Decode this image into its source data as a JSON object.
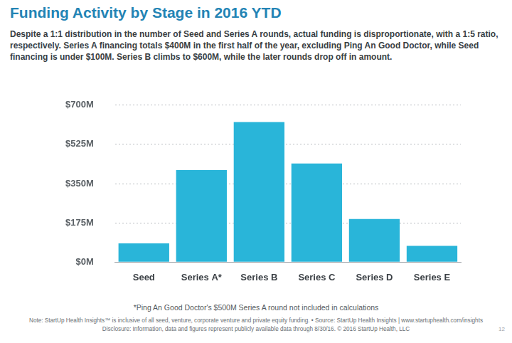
{
  "chart_data": {
    "type": "bar",
    "title": "Funding Activity by Stage in 2016 YTD",
    "subtitle": "Despite a 1:1 distribution in the number of Seed and Series A rounds, actual funding is disproportionate, with a 1:5 ratio, respectively. Series A financing totals $400M in the first half of the year, excluding Ping An Good Doctor, while Seed financing is under $100M. Series B climbs to $600M, while the later rounds drop off in amount.",
    "categories": [
      "Seed",
      "Series A*",
      "Series B",
      "Series C",
      "Series D",
      "Series E"
    ],
    "values": [
      83,
      410,
      625,
      440,
      192,
      72
    ],
    "color": "#29b5d9",
    "ylim": [
      0,
      700
    ],
    "yticks": [
      {
        "value": 0,
        "label": "$0M"
      },
      {
        "value": 175,
        "label": "$175M"
      },
      {
        "value": 350,
        "label": "$350M"
      },
      {
        "value": 525,
        "label": "$525M"
      },
      {
        "value": 700,
        "label": "$700M"
      }
    ],
    "grid": true,
    "annotations": [
      "*Ping An Good Doctor's $500M Series A round not included in calculations",
      "Note: StartUp Health Insights™ is inclusive of all seed, venture, corporate venture and private equity funding. • Source: StartUp Health Insights | www.startuphealth.com/insights",
      "Disclosure: Information, data and figures represent publicly available data through 8/30/16. © 2016 StartUp Health, LLC",
      "12"
    ]
  }
}
